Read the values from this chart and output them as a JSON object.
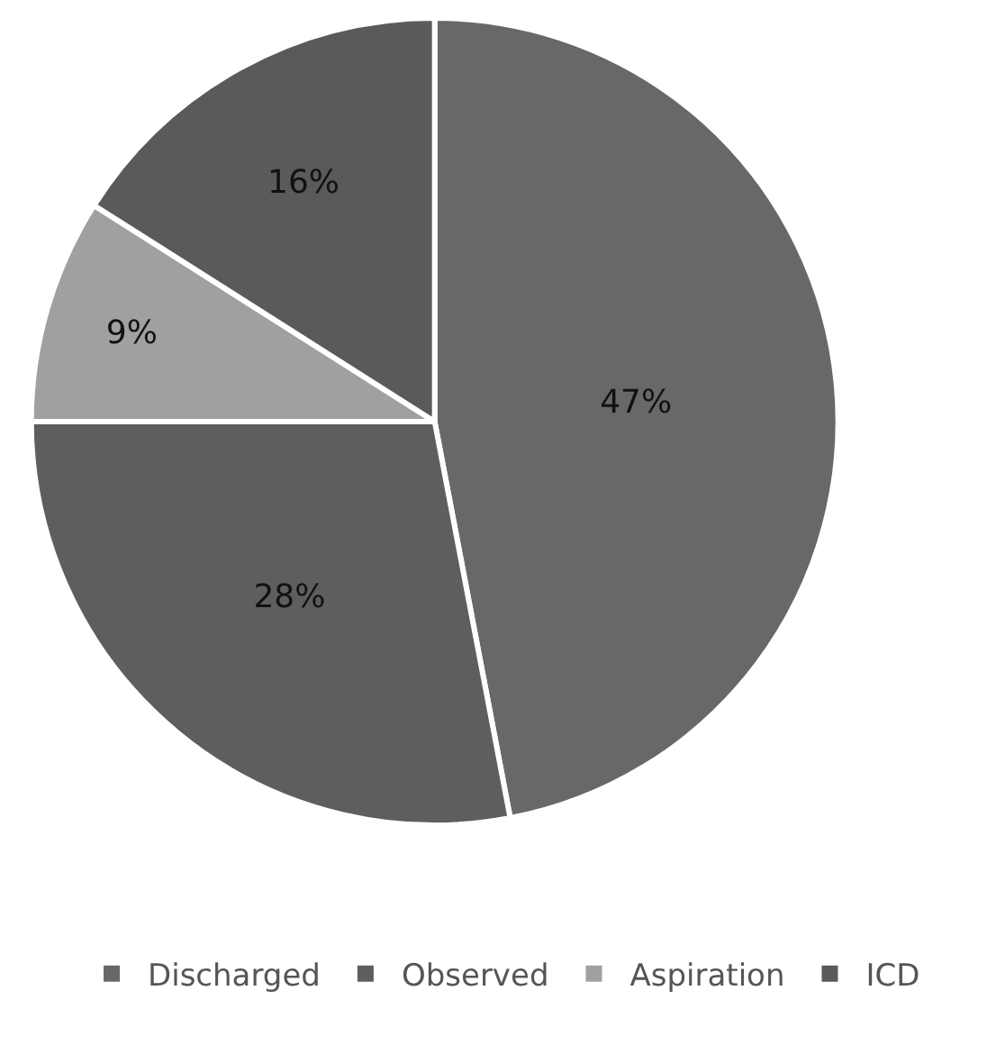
{
  "chart_data": {
    "type": "pie",
    "categories": [
      "Discharged",
      "Observed",
      "Aspiration",
      "ICD"
    ],
    "values": [
      47,
      28,
      9,
      16
    ],
    "value_labels": [
      "47%",
      "28%",
      "9%",
      "16%"
    ],
    "colors": [
      "#686868",
      "#5e5e5e",
      "#a0a0a0",
      "#5a5a5a"
    ],
    "legend": "bottom"
  }
}
